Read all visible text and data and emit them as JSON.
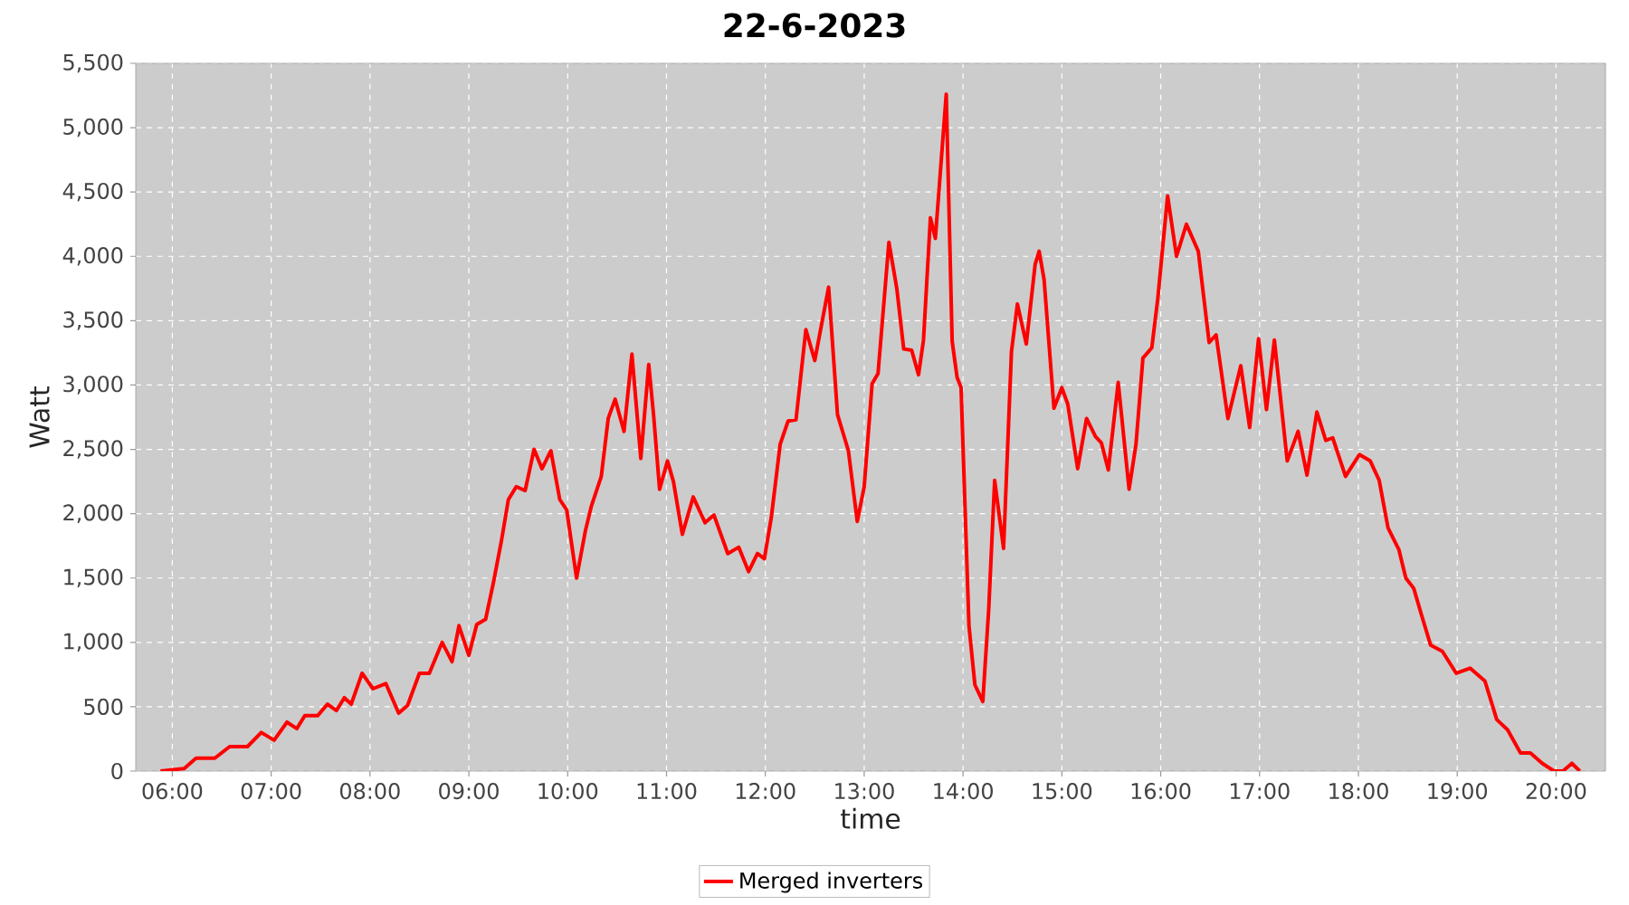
{
  "chart_data": {
    "type": "line",
    "title": "22-6-2023",
    "xlabel": "time",
    "ylabel": "Watt",
    "x": [
      5.88,
      6.12,
      6.24,
      6.43,
      6.58,
      6.76,
      6.9,
      7.03,
      7.16,
      7.26,
      7.34,
      7.47,
      7.57,
      7.66,
      7.74,
      7.81,
      7.92,
      8.03,
      8.16,
      8.29,
      8.38,
      8.5,
      8.6,
      8.73,
      8.83,
      8.9,
      9.0,
      9.08,
      9.17,
      9.25,
      9.33,
      9.4,
      9.48,
      9.57,
      9.66,
      9.74,
      9.83,
      9.92,
      9.99,
      10.09,
      10.18,
      10.24,
      10.34,
      10.41,
      10.48,
      10.57,
      10.65,
      10.74,
      10.82,
      10.87,
      10.93,
      11.01,
      11.07,
      11.16,
      11.27,
      11.39,
      11.48,
      11.62,
      11.73,
      11.83,
      11.92,
      11.99,
      12.06,
      12.15,
      12.23,
      12.31,
      12.41,
      12.5,
      12.64,
      12.73,
      12.84,
      12.93,
      13.0,
      13.08,
      13.14,
      13.25,
      13.33,
      13.4,
      13.48,
      13.55,
      13.6,
      13.67,
      13.72,
      13.83,
      13.89,
      13.94,
      13.98,
      14.06,
      14.12,
      14.2,
      14.26,
      14.32,
      14.41,
      14.49,
      14.55,
      14.64,
      14.73,
      14.77,
      14.82,
      14.92,
      15.0,
      15.06,
      15.16,
      15.25,
      15.34,
      15.4,
      15.47,
      15.57,
      15.68,
      15.75,
      15.82,
      15.91,
      15.97,
      16.07,
      16.16,
      16.26,
      16.38,
      16.49,
      16.56,
      16.68,
      16.81,
      16.9,
      16.99,
      17.07,
      17.15,
      17.28,
      17.39,
      17.48,
      17.58,
      17.67,
      17.74,
      17.87,
      18.01,
      18.12,
      18.21,
      18.3,
      18.41,
      18.48,
      18.56,
      18.64,
      18.73,
      18.85,
      18.99,
      19.13,
      19.28,
      19.4,
      19.51,
      19.64,
      19.74,
      19.86,
      19.98,
      20.07,
      20.16,
      20.24
    ],
    "series": [
      {
        "name": "Merged inverters",
        "color": "#ff0000",
        "values": [
          0,
          20,
          100,
          100,
          190,
          190,
          300,
          240,
          380,
          330,
          430,
          430,
          520,
          470,
          570,
          520,
          760,
          640,
          680,
          450,
          510,
          760,
          760,
          1000,
          850,
          1130,
          900,
          1140,
          1180,
          1470,
          1790,
          2110,
          2210,
          2180,
          2500,
          2350,
          2490,
          2110,
          2030,
          1500,
          1870,
          2060,
          2290,
          2740,
          2890,
          2640,
          3240,
          2430,
          3160,
          2760,
          2190,
          2410,
          2250,
          1840,
          2130,
          1930,
          1990,
          1690,
          1740,
          1550,
          1690,
          1650,
          1970,
          2540,
          2720,
          2730,
          3430,
          3190,
          3760,
          2770,
          2490,
          1940,
          2210,
          3010,
          3090,
          4110,
          3750,
          3280,
          3270,
          3080,
          3350,
          4300,
          4140,
          5260,
          3340,
          3060,
          2980,
          1130,
          670,
          540,
          1260,
          2260,
          1730,
          3260,
          3630,
          3320,
          3940,
          4040,
          3820,
          2820,
          2980,
          2850,
          2350,
          2740,
          2600,
          2550,
          2340,
          3020,
          2190,
          2540,
          3210,
          3290,
          3670,
          4470,
          4000,
          4250,
          4040,
          3330,
          3390,
          2740,
          3150,
          2670,
          3360,
          2810,
          3350,
          2410,
          2640,
          2300,
          2790,
          2570,
          2590,
          2290,
          2460,
          2410,
          2260,
          1890,
          1720,
          1500,
          1420,
          1210,
          980,
          930,
          760,
          800,
          700,
          400,
          320,
          140,
          140,
          60,
          0,
          0,
          60,
          0
        ]
      }
    ],
    "xlim": [
      5.63,
      20.5
    ],
    "xticks": [
      {
        "value": 6,
        "label": "06:00"
      },
      {
        "value": 7,
        "label": "07:00"
      },
      {
        "value": 8,
        "label": "08:00"
      },
      {
        "value": 9,
        "label": "09:00"
      },
      {
        "value": 10,
        "label": "10:00"
      },
      {
        "value": 11,
        "label": "11:00"
      },
      {
        "value": 12,
        "label": "12:00"
      },
      {
        "value": 13,
        "label": "13:00"
      },
      {
        "value": 14,
        "label": "14:00"
      },
      {
        "value": 15,
        "label": "15:00"
      },
      {
        "value": 16,
        "label": "16:00"
      },
      {
        "value": 17,
        "label": "17:00"
      },
      {
        "value": 18,
        "label": "18:00"
      },
      {
        "value": 19,
        "label": "19:00"
      },
      {
        "value": 20,
        "label": "20:00"
      }
    ],
    "ylim": [
      0,
      5500
    ],
    "yticks": [
      0,
      500,
      {
        "value": 1000,
        "label": "1,000"
      },
      {
        "value": 1500,
        "label": "1,500"
      },
      {
        "value": 2000,
        "label": "2,000"
      },
      {
        "value": 2500,
        "label": "2,500"
      },
      {
        "value": 3000,
        "label": "3,000"
      },
      {
        "value": 3500,
        "label": "3,500"
      },
      {
        "value": 4000,
        "label": "4,000"
      },
      {
        "value": 4500,
        "label": "4,500"
      },
      {
        "value": 5000,
        "label": "5,000"
      },
      {
        "value": 5500,
        "label": "5,500"
      }
    ],
    "grid": true,
    "legend": "bottom",
    "line_style": "solid"
  }
}
